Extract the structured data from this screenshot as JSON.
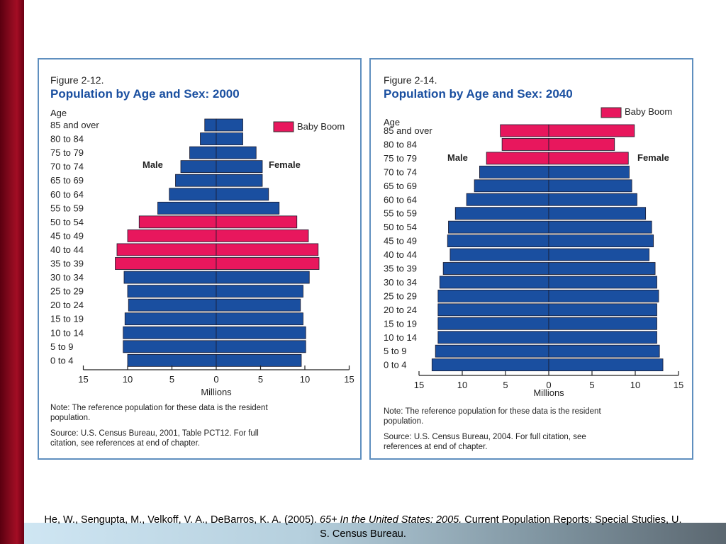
{
  "colors": {
    "male_female_bar": "#1a4fa0",
    "baby_boom": "#e8175d",
    "title": "#1a4fa0",
    "frame": "#5f8fbf",
    "accent_bar": "#8a0a1e"
  },
  "chart_data": [
    {
      "type": "bar",
      "figure_label": "Figure 2-12.",
      "title": "Population by Age and Sex:  2000",
      "age_header": "Age",
      "male_label": "Male",
      "female_label": "Female",
      "legend": "Baby Boom",
      "xlabel": "Millions",
      "x_ticks": [
        "15",
        "10",
        "5",
        "0",
        "5",
        "10",
        "15"
      ],
      "xlim": [
        -15,
        15
      ],
      "categories": [
        "85 and over",
        "80 to 84",
        "75 to 79",
        "70 to 74",
        "65 to 69",
        "60 to 64",
        "55 to 59",
        "50 to 54",
        "45 to 49",
        "40 to 44",
        "35 to 39",
        "30 to 34",
        "25 to 29",
        "20 to 24",
        "15 to 19",
        "10 to 14",
        "5 to 9",
        "0 to 4"
      ],
      "series": [
        {
          "name": "Male",
          "values": [
            1.3,
            1.8,
            3.0,
            4.0,
            4.6,
            5.3,
            6.6,
            8.7,
            10.0,
            11.2,
            11.4,
            10.4,
            10.0,
            9.9,
            10.3,
            10.5,
            10.5,
            10.0
          ]
        },
        {
          "name": "Female",
          "values": [
            3.0,
            3.0,
            4.5,
            5.2,
            5.2,
            5.9,
            7.1,
            9.1,
            10.4,
            11.5,
            11.6,
            10.5,
            9.8,
            9.5,
            9.8,
            10.1,
            10.1,
            9.6
          ]
        }
      ],
      "baby_boom_categories": [
        "50 to 54",
        "45 to 49",
        "40 to 44",
        "35 to 39"
      ],
      "note": "Note:  The reference population for these data is the resident population.",
      "source": "Source:  U.S. Census Bureau, 2001, Table PCT12.  For full citation, see references at end of chapter."
    },
    {
      "type": "bar",
      "figure_label": "Figure 2-14.",
      "title": "Population by Age and Sex:  2040",
      "age_header": "Age",
      "male_label": "Male",
      "female_label": "Female",
      "legend": "Baby Boom",
      "xlabel": "Millions",
      "x_ticks": [
        "15",
        "10",
        "5",
        "0",
        "5",
        "10",
        "15"
      ],
      "xlim": [
        -15,
        15
      ],
      "categories": [
        "85 and over",
        "80 to 84",
        "75 to 79",
        "70 to 74",
        "65 to 69",
        "60 to 64",
        "55 to 59",
        "50 to 54",
        "45 to 49",
        "40 to 44",
        "35 to 39",
        "30 to 34",
        "25 to 29",
        "20 to 24",
        "15 to 19",
        "10 to 14",
        "5 to 9",
        "0 to 4"
      ],
      "series": [
        {
          "name": "Male",
          "values": [
            5.6,
            5.4,
            7.2,
            8.0,
            8.6,
            9.5,
            10.8,
            11.6,
            11.7,
            11.4,
            12.2,
            12.6,
            12.8,
            12.8,
            12.8,
            12.8,
            13.1,
            13.5
          ]
        },
        {
          "name": "Female",
          "values": [
            9.9,
            7.6,
            9.2,
            9.3,
            9.6,
            10.2,
            11.2,
            11.9,
            12.1,
            11.6,
            12.3,
            12.5,
            12.7,
            12.5,
            12.5,
            12.5,
            12.8,
            13.2
          ]
        }
      ],
      "baby_boom_categories": [
        "85 and over",
        "80 to 84",
        "75 to 79"
      ],
      "note": "Note:  The reference population for these data is the resident population.",
      "source": "Source:  U.S. Census Bureau, 2004.  For full citation, see references at end of chapter."
    }
  ],
  "citation": {
    "authors": "He, W., Sengupta, M., Velkoff, V. A., DeBarros, K. A. (2005). ",
    "title": "65+ In the United States: 2005.",
    "rest": " Current Population Reports: Special Studies,  U. S. Census Bureau."
  }
}
